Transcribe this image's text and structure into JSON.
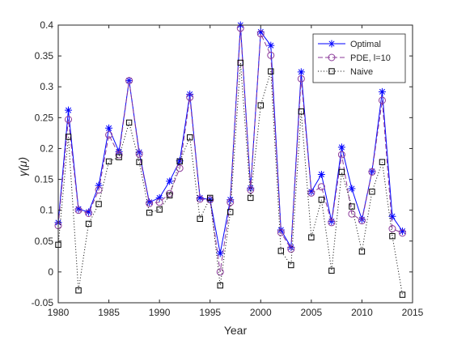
{
  "chart_data": {
    "type": "line",
    "xlabel": "Year",
    "ylabel": "γ(μ)",
    "xlim": [
      1980,
      2015
    ],
    "ylim": [
      -0.05,
      0.4
    ],
    "xticks": [
      1980,
      1985,
      1990,
      1995,
      2000,
      2005,
      2010,
      2015
    ],
    "yticks": [
      -0.05,
      0,
      0.05,
      0.1,
      0.15,
      0.2,
      0.25,
      0.3,
      0.35,
      0.4
    ],
    "ytick_labels": [
      "-0.05",
      "0",
      "0.05",
      "0.1",
      "0.15",
      "0.2",
      "0.25",
      "0.3",
      "0.35",
      "0.4"
    ],
    "grid": false,
    "legend_position": "top-right",
    "x": [
      1980,
      1981,
      1982,
      1983,
      1984,
      1985,
      1986,
      1987,
      1988,
      1989,
      1990,
      1991,
      1992,
      1993,
      1994,
      1995,
      1996,
      1997,
      1998,
      1999,
      2000,
      2001,
      2002,
      2003,
      2004,
      2005,
      2006,
      2007,
      2008,
      2009,
      2010,
      2011,
      2012,
      2013,
      2014
    ],
    "series": [
      {
        "name": "Optimal",
        "color": "#0000ff",
        "line": "solid",
        "marker": "asterisk",
        "values": [
          0.08,
          0.262,
          0.102,
          0.097,
          0.14,
          0.233,
          0.195,
          0.31,
          0.194,
          0.113,
          0.12,
          0.147,
          0.18,
          0.288,
          0.12,
          0.117,
          0.03,
          0.117,
          0.4,
          0.136,
          0.389,
          0.367,
          0.068,
          0.04,
          0.324,
          0.13,
          0.158,
          0.082,
          0.202,
          0.135,
          0.085,
          0.163,
          0.292,
          0.09,
          0.066
        ]
      },
      {
        "name": "PDE, l=10",
        "color": "#8b3a9a",
        "line": "dashed",
        "marker": "circle",
        "values": [
          0.075,
          0.247,
          0.1,
          0.095,
          0.133,
          0.222,
          0.19,
          0.31,
          0.191,
          0.111,
          0.113,
          0.127,
          0.168,
          0.283,
          0.118,
          0.117,
          0.0,
          0.113,
          0.395,
          0.133,
          0.386,
          0.351,
          0.064,
          0.037,
          0.313,
          0.128,
          0.138,
          0.08,
          0.19,
          0.094,
          0.083,
          0.162,
          0.278,
          0.07,
          0.063
        ]
      },
      {
        "name": "Naive",
        "color": "#000000",
        "line": "dotted",
        "marker": "square",
        "values": [
          0.044,
          0.219,
          -0.03,
          0.078,
          0.11,
          0.179,
          0.186,
          0.242,
          0.178,
          0.096,
          0.101,
          0.124,
          0.179,
          0.218,
          0.086,
          0.12,
          -0.022,
          0.097,
          0.339,
          0.12,
          0.27,
          0.325,
          0.034,
          0.011,
          0.26,
          0.056,
          0.117,
          0.002,
          0.162,
          0.106,
          0.033,
          0.13,
          0.178,
          0.058,
          -0.037
        ]
      }
    ]
  }
}
